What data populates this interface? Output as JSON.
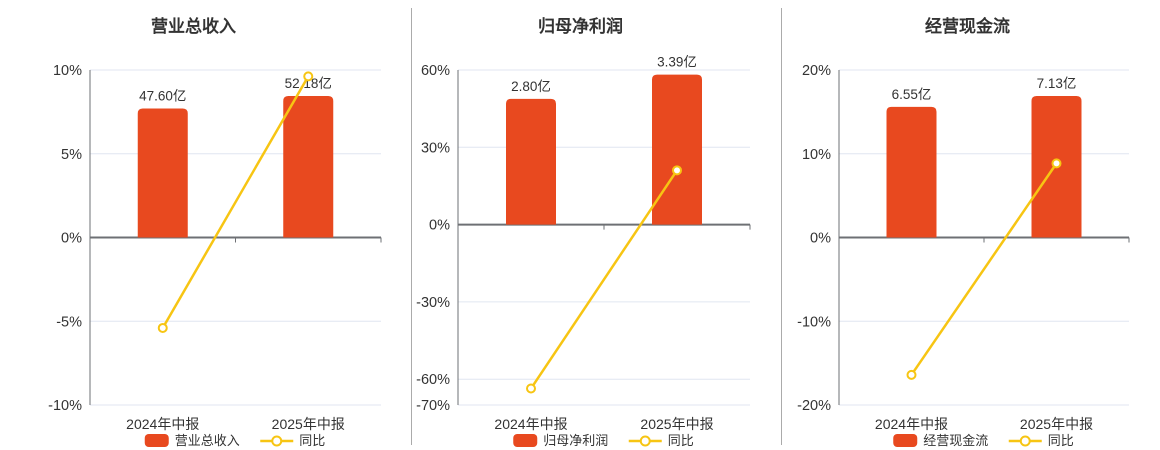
{
  "page": {
    "background": "#ffffff"
  },
  "colors": {
    "bar": "#e8491f",
    "line": "#f7c513",
    "marker_fill": "#ffffff",
    "grid": "#e0e6f1",
    "zero_axis": "#6e7074",
    "y_axis": "#6e7074",
    "divider": "#ababab",
    "text": "#333333"
  },
  "chart_data": [
    {
      "type": "bar",
      "title": "营业总收入",
      "bar_series_name": "营业总收入",
      "line_series_name": "同比",
      "categories": [
        "2024年中报",
        "2025年中报"
      ],
      "bar_values_yi": [
        47.6,
        52.18
      ],
      "bar_labels": [
        "47.60亿",
        "52.18亿"
      ],
      "bar_tops_axis_pct": [
        7.7,
        8.45
      ],
      "line_values_pct": [
        -5.4,
        9.62
      ],
      "y_ticks_pct": [
        10,
        5,
        0,
        -5,
        -10
      ],
      "y_tick_labels": [
        "10%",
        "5%",
        "0%",
        "-5%",
        "-10%"
      ],
      "ylim_pct": [
        -10,
        10
      ],
      "grid": true,
      "legend_position": "bottom"
    },
    {
      "type": "bar",
      "title": "归母净利润",
      "bar_series_name": "归母净利润",
      "line_series_name": "同比",
      "categories": [
        "2024年中报",
        "2025年中报"
      ],
      "bar_values_yi": [
        2.8,
        3.39
      ],
      "bar_labels": [
        "2.80亿",
        "3.39亿"
      ],
      "bar_tops_axis_pct": [
        48.8,
        58.2
      ],
      "line_values_pct": [
        -63.6,
        21.07
      ],
      "y_ticks_pct": [
        60,
        30,
        0,
        -30,
        -60,
        -70
      ],
      "y_tick_labels": [
        "60%",
        "30%",
        "0%",
        "-30%",
        "-60%",
        "-70%"
      ],
      "ylim_pct": [
        -70,
        60
      ],
      "grid": true,
      "legend_position": "bottom"
    },
    {
      "type": "bar",
      "title": "经营现金流",
      "bar_series_name": "经营现金流",
      "line_series_name": "同比",
      "categories": [
        "2024年中报",
        "2025年中报"
      ],
      "bar_values_yi": [
        6.55,
        7.13
      ],
      "bar_labels": [
        "6.55亿",
        "7.13亿"
      ],
      "bar_tops_axis_pct": [
        15.6,
        16.9
      ],
      "line_values_pct": [
        -16.4,
        8.85
      ],
      "y_ticks_pct": [
        20,
        10,
        0,
        -10,
        -20
      ],
      "y_tick_labels": [
        "20%",
        "10%",
        "0%",
        "-10%",
        "-20%"
      ],
      "ylim_pct": [
        -20,
        20
      ],
      "grid": true,
      "legend_position": "bottom"
    }
  ]
}
